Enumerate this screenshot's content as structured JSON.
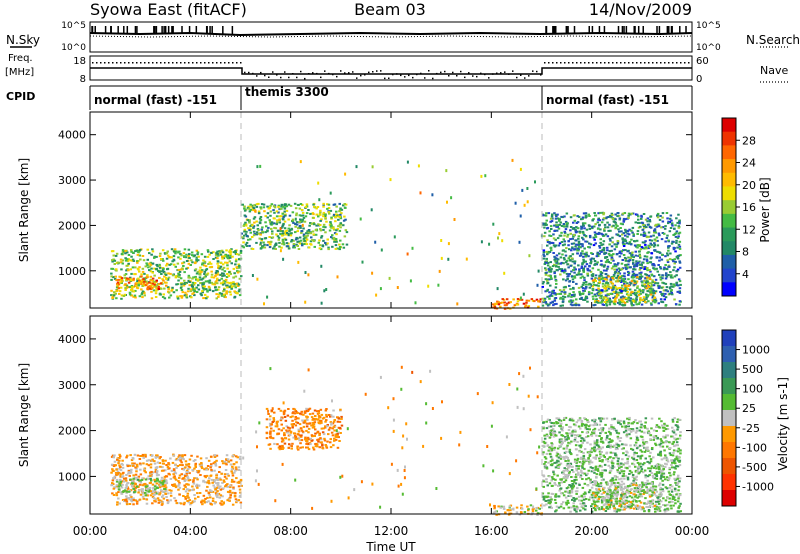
{
  "header": {
    "station": "Syowa East (fitACF)",
    "beam": "Beam 03",
    "date": "14/Nov/2009"
  },
  "top_panels": {
    "nsky_label": "N.Sky",
    "nsearch_label": "N.Search",
    "freq_label": "Freq.",
    "freq_unit": "[MHz]",
    "nave_label": "Nave",
    "cpid_label": "CPID",
    "left_ticks": [
      "10^5",
      "10^0",
      "18",
      "8"
    ],
    "right_ticks": [
      "10^5",
      "10^0",
      "60",
      "0"
    ],
    "cpid_segments": [
      {
        "label": "normal (fast) -151",
        "start": 0,
        "end": 6
      },
      {
        "label": "themis 3300",
        "start": 6,
        "end": 18
      },
      {
        "label": "normal (fast) -151",
        "start": 18,
        "end": 24
      }
    ]
  },
  "power_colorbar": {
    "label": "Power [dB]",
    "ticks": [
      "28",
      "24",
      "20",
      "16",
      "12",
      "8",
      "4"
    ],
    "colors": [
      "#dd0000",
      "#ee3300",
      "#ff6600",
      "#ff9900",
      "#ffbb00",
      "#eedd00",
      "#99cc33",
      "#44bb44",
      "#2a9a5a",
      "#228866",
      "#1f5fa8",
      "#2244cc",
      "#0000ff"
    ]
  },
  "velocity_colorbar": {
    "label": "Velocity [m s-1]",
    "ticks": [
      "1000",
      "500",
      "100",
      "25",
      "-25",
      "-100",
      "-500",
      "-1000"
    ],
    "colors": [
      "#2040bb",
      "#2e5fb0",
      "#2e7f7f",
      "#3a9955",
      "#55bb33",
      "#c0c0c0",
      "#ff9900",
      "#ff7700",
      "#ee5500",
      "#ff3300",
      "#dd0000"
    ]
  },
  "time_axis": {
    "label": "Time UT",
    "ticks": [
      "00:00",
      "04:00",
      "08:00",
      "12:00",
      "16:00",
      "20:00",
      "00:00"
    ]
  },
  "range_axis": {
    "label": "Slant Range [km]",
    "ticks": [
      "1000",
      "2000",
      "3000",
      "4000"
    ]
  },
  "chart_data": [
    {
      "type": "heatmap",
      "title": "Syowa East (fitACF) Beam 03 14/Nov/2009",
      "xlabel": "Time UT",
      "ylabel": "Slant Range [km]",
      "xlim": [
        0,
        24
      ],
      "ylim": [
        180,
        4500
      ],
      "quantity": "Power [dB]",
      "zlim": [
        0,
        30
      ],
      "regions": [
        {
          "t": [
            0.8,
            6.0
          ],
          "range": [
            400,
            1500
          ],
          "value": 14
        },
        {
          "t": [
            1.0,
            3.0
          ],
          "range": [
            600,
            900
          ],
          "value": 22
        },
        {
          "t": [
            6.0,
            10.2
          ],
          "range": [
            1500,
            2500
          ],
          "value": 12
        },
        {
          "t": [
            16.0,
            18.0
          ],
          "range": [
            180,
            400
          ],
          "value": 24
        },
        {
          "t": [
            18.0,
            23.5
          ],
          "range": [
            250,
            2300
          ],
          "value": 8
        },
        {
          "t": [
            20.0,
            22.5
          ],
          "range": [
            300,
            900
          ],
          "value": 16
        }
      ]
    },
    {
      "type": "heatmap",
      "title": "Syowa East (fitACF) Beam 03 14/Nov/2009",
      "xlabel": "Time UT",
      "ylabel": "Slant Range [km]",
      "xlim": [
        0,
        24
      ],
      "ylim": [
        180,
        4500
      ],
      "quantity": "Velocity [m s-1]",
      "zlim": [
        -1000,
        1000
      ],
      "regions": [
        {
          "t": [
            0.8,
            6.0
          ],
          "range": [
            400,
            1500
          ],
          "value": -150
        },
        {
          "t": [
            1.0,
            3.0
          ],
          "range": [
            600,
            1000
          ],
          "value": 60
        },
        {
          "t": [
            7.0,
            10.0
          ],
          "range": [
            1600,
            2500
          ],
          "value": -300
        },
        {
          "t": [
            16.0,
            18.0
          ],
          "range": [
            180,
            400
          ],
          "value": -50
        },
        {
          "t": [
            18.0,
            23.5
          ],
          "range": [
            250,
            2300
          ],
          "value": 150
        },
        {
          "t": [
            20.0,
            22.5
          ],
          "range": [
            300,
            900
          ],
          "value": 60
        }
      ]
    }
  ]
}
